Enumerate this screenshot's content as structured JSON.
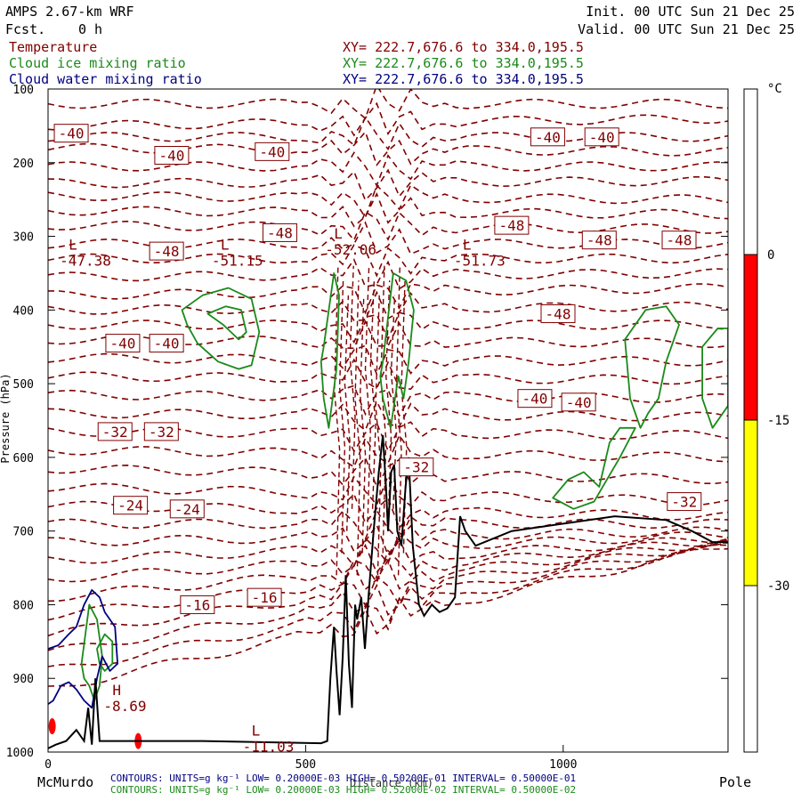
{
  "header": {
    "title": "AMPS 2.67-km WRF",
    "fcst_label": "Fcst.",
    "fcst_value": "0 h",
    "init": "Init. 00 UTC Sun 21 Dec 25",
    "valid": "Valid. 00 UTC Sun 21 Dec 25"
  },
  "fields": [
    {
      "name": "Temperature",
      "xy": "XY= 222.7,676.6 to 334.0,195.5",
      "color": "#800000"
    },
    {
      "name": "Cloud ice mixing ratio",
      "xy": "XY= 222.7,676.6 to 334.0,195.5",
      "color": "#1a8a1a"
    },
    {
      "name": "Cloud water mixing ratio",
      "xy": "XY= 222.7,676.6 to 334.0,195.5",
      "color": "#000080"
    }
  ],
  "footer": {
    "left_end": "McMurdo",
    "right_end": "Pole",
    "contour_lines": [
      {
        "text": "CONTOURS:  UNITS=g kg⁻¹  LOW= 0.20000E-03  HIGH= 0.50200E-01  INTERVAL=  0.50000E-01",
        "color": "#000080"
      },
      {
        "text": "CONTOURS:  UNITS=g kg⁻¹  LOW= 0.20000E-03  HIGH= 0.52000E-02  INTERVAL=  0.50000E-02",
        "color": "#1a8a1a"
      }
    ]
  },
  "chart_data": {
    "type": "cross-section contour",
    "xlabel": "Distance (km)",
    "ylabel": "Pressure (hPa)",
    "xlim": [
      0,
      1320
    ],
    "ylim": [
      1000,
      100
    ],
    "x_ticks": [
      0,
      500,
      1000
    ],
    "y_ticks": [
      100,
      200,
      300,
      400,
      500,
      600,
      700,
      800,
      900,
      1000
    ],
    "colorbar": {
      "unit": "°C",
      "ticks": [
        0,
        -15,
        -30
      ],
      "bands": [
        {
          "from": 0,
          "to": 0,
          "color": "#ffffff"
        },
        {
          "from": 0,
          "to": -15,
          "color": "#ff0000"
        },
        {
          "from": -15,
          "to": -30,
          "color": "#ffff00"
        },
        {
          "from": -30,
          "to": -30,
          "color": "#ffffff"
        }
      ]
    },
    "contour_labels": [
      {
        "text": "-40",
        "x": 45,
        "p": 160
      },
      {
        "text": "-40",
        "x": 240,
        "p": 190
      },
      {
        "text": "-40",
        "x": 435,
        "p": 185
      },
      {
        "text": "-40",
        "x": 970,
        "p": 165
      },
      {
        "text": "-40",
        "x": 1075,
        "p": 165
      },
      {
        "text": "-48",
        "x": 900,
        "p": 285
      },
      {
        "text": "-48",
        "x": 450,
        "p": 295
      },
      {
        "text": "-48",
        "x": 1070,
        "p": 305
      },
      {
        "text": "-48",
        "x": 1225,
        "p": 305
      },
      {
        "text": "-48",
        "x": 230,
        "p": 320
      },
      {
        "text": "-48",
        "x": 990,
        "p": 405
      },
      {
        "text": "-40",
        "x": 145,
        "p": 445
      },
      {
        "text": "-40",
        "x": 230,
        "p": 445
      },
      {
        "text": "-40",
        "x": 945,
        "p": 520
      },
      {
        "text": "-40",
        "x": 1030,
        "p": 525
      },
      {
        "text": "-32",
        "x": 130,
        "p": 565
      },
      {
        "text": "-32",
        "x": 220,
        "p": 565
      },
      {
        "text": "-32",
        "x": 1235,
        "p": 660
      },
      {
        "text": "-24",
        "x": 160,
        "p": 665
      },
      {
        "text": "-24",
        "x": 270,
        "p": 670
      },
      {
        "text": "-16",
        "x": 290,
        "p": 800
      },
      {
        "text": "-16",
        "x": 420,
        "p": 790
      },
      {
        "text": "-32",
        "x": 715,
        "p": 613
      }
    ],
    "extrema": [
      {
        "kind": "L",
        "value": "-47.38",
        "x": 40,
        "p": 330
      },
      {
        "kind": "L",
        "value": "-51.15",
        "x": 335,
        "p": 330
      },
      {
        "kind": "L",
        "value": "-52.06",
        "x": 555,
        "p": 315
      },
      {
        "kind": "L",
        "value": "-51.73",
        "x": 805,
        "p": 330
      },
      {
        "kind": "H",
        "value": "-8.69",
        "x": 125,
        "p": 935
      },
      {
        "kind": "L",
        "value": "-11.03",
        "x": 395,
        "p": 990
      }
    ],
    "terrain": {
      "x": [
        0,
        15,
        35,
        55,
        70,
        78,
        85,
        92,
        100,
        130,
        300,
        530,
        542,
        548,
        555,
        560,
        566,
        572,
        578,
        584,
        590,
        596,
        600,
        608,
        615,
        622,
        632,
        642,
        650,
        656,
        660,
        666,
        672,
        678,
        686,
        694,
        700,
        708,
        720,
        730,
        745,
        760,
        775,
        790,
        800,
        810,
        830,
        900,
        1000,
        1100,
        1200,
        1250,
        1290,
        1320
      ],
      "p": [
        995,
        990,
        985,
        970,
        985,
        940,
        990,
        900,
        985,
        985,
        985,
        988,
        985,
        900,
        830,
        890,
        950,
        870,
        760,
        880,
        940,
        800,
        820,
        790,
        860,
        790,
        700,
        620,
        570,
        640,
        700,
        620,
        610,
        700,
        720,
        640,
        600,
        720,
        800,
        815,
        800,
        810,
        805,
        790,
        680,
        700,
        720,
        700,
        690,
        680,
        685,
        700,
        715,
        715
      ]
    },
    "ice_cloud_regions": [
      {
        "x": [
          260,
          300,
          350,
          395,
          410,
          395,
          370,
          330,
          290,
          270,
          260
        ],
        "p": [
          400,
          380,
          370,
          385,
          430,
          475,
          480,
          470,
          445,
          420,
          400
        ]
      },
      {
        "x": [
          310,
          345,
          375,
          385,
          370,
          340,
          310
        ],
        "p": [
          405,
          395,
          400,
          430,
          440,
          420,
          405
        ]
      },
      {
        "x": [
          535,
          555,
          565,
          560,
          545,
          535,
          530,
          535
        ],
        "p": [
          450,
          350,
          380,
          480,
          560,
          520,
          470,
          450
        ]
      },
      {
        "x": [
          650,
          670,
          695,
          710,
          700,
          690,
          680,
          665,
          650,
          645,
          650
        ],
        "p": [
          470,
          350,
          360,
          400,
          470,
          520,
          490,
          560,
          520,
          490,
          470
        ]
      },
      {
        "x": [
          1120,
          1160,
          1200,
          1225,
          1200,
          1185,
          1165,
          1150,
          1130,
          1120
        ],
        "p": [
          440,
          400,
          395,
          420,
          470,
          520,
          540,
          560,
          520,
          440
        ]
      },
      {
        "x": [
          1270,
          1300,
          1320,
          1320,
          1290,
          1270,
          1270
        ],
        "p": [
          450,
          425,
          425,
          530,
          560,
          520,
          450
        ]
      },
      {
        "x": [
          980,
          1010,
          1040,
          1070,
          1090,
          1110,
          1140,
          1110,
          1060,
          1020,
          980
        ],
        "p": [
          655,
          630,
          620,
          640,
          580,
          560,
          560,
          600,
          660,
          670,
          655
        ]
      },
      {
        "x": [
          65,
          80,
          95,
          105,
          100,
          90,
          80,
          70,
          65
        ],
        "p": [
          880,
          800,
          820,
          870,
          910,
          930,
          910,
          900,
          880
        ]
      },
      {
        "x": [
          95,
          110,
          125,
          125,
          110,
          100,
          95
        ],
        "p": [
          860,
          840,
          850,
          880,
          890,
          880,
          860
        ]
      }
    ],
    "water_cloud_regions": [
      {
        "x": [
          0,
          20,
          40,
          55,
          70,
          85,
          100,
          110,
          130,
          135,
          120,
          105,
          95,
          85,
          70,
          55,
          40,
          25,
          10,
          0
        ],
        "p": [
          860,
          855,
          840,
          830,
          800,
          780,
          790,
          810,
          830,
          880,
          890,
          870,
          900,
          940,
          930,
          915,
          905,
          910,
          930,
          935
        ]
      }
    ],
    "shading_patches": [
      {
        "x": 8,
        "p": 965,
        "color": "#ff0000"
      },
      {
        "x": 175,
        "p": 985,
        "color": "#ff0000"
      }
    ],
    "temperature_contours": {
      "dashed": true,
      "color": "#800000",
      "levels_p_left": [
        120,
        150,
        165,
        180,
        205,
        228,
        245,
        265,
        285,
        310,
        330,
        355,
        380,
        400,
        420,
        440,
        465,
        490,
        515,
        540,
        565,
        590,
        615,
        640,
        665,
        690,
        715,
        740,
        765,
        790,
        815,
        840,
        865,
        890,
        915
      ],
      "levels_p_right": [
        120,
        140,
        165,
        185,
        205,
        225,
        250,
        270,
        290,
        310,
        330,
        350,
        370,
        395,
        420,
        445,
        470,
        495,
        520,
        545,
        570,
        600,
        630,
        660,
        680,
        690,
        700,
        705,
        710,
        712,
        714,
        716,
        718,
        720,
        720
      ]
    }
  }
}
